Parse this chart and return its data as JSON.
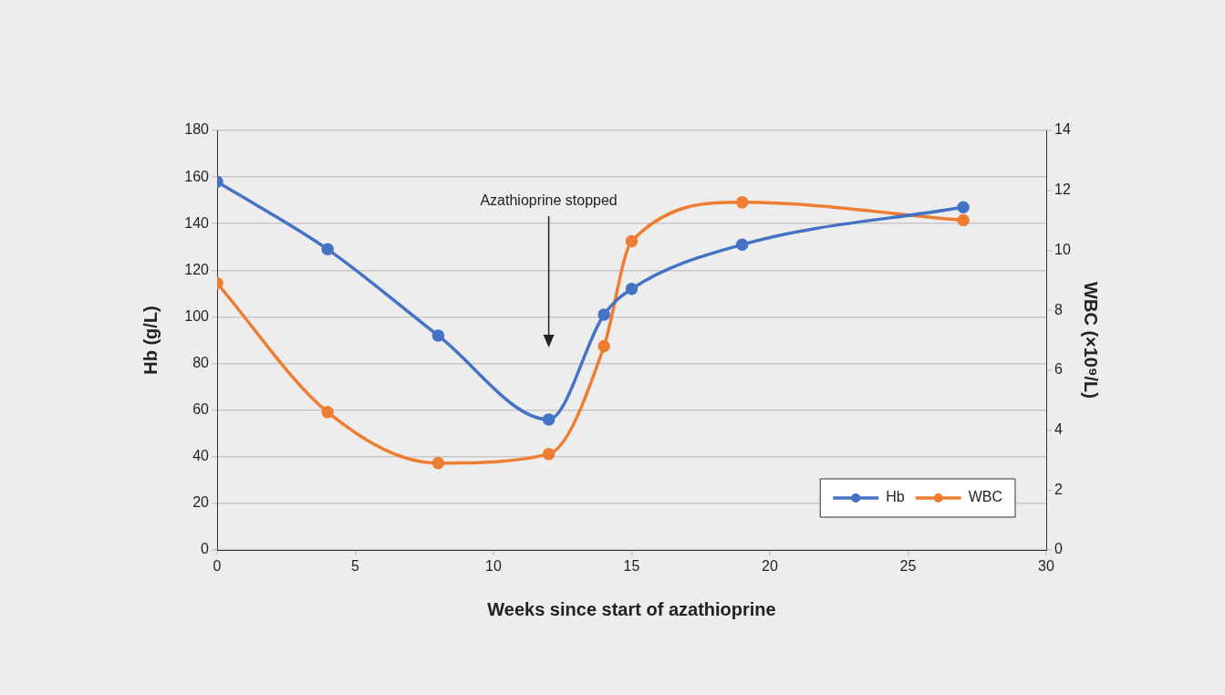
{
  "chart_data": {
    "type": "line",
    "xlabel": "Weeks since start of azathioprine",
    "ylabel": "Hb (g/L)",
    "y2label": "WBC (×10⁹/L)",
    "x": [
      0,
      4,
      8,
      12,
      14,
      15,
      19,
      27
    ],
    "series": [
      {
        "name": "Hb",
        "color": "#4472c4",
        "values": [
          158,
          129,
          92,
          56,
          101,
          112,
          131,
          147
        ]
      },
      {
        "name": "WBC",
        "color": "#ed7d31",
        "axis": "y2",
        "values": [
          8.9,
          4.6,
          2.9,
          3.2,
          6.8,
          10.3,
          11.6,
          11.0
        ]
      }
    ],
    "xlim": [
      0,
      30
    ],
    "xticks": [
      0,
      5,
      10,
      15,
      20,
      25,
      30
    ],
    "ylim": [
      0,
      180
    ],
    "yticks": [
      0,
      20,
      40,
      60,
      80,
      100,
      120,
      140,
      160,
      180
    ],
    "y2lim": [
      0,
      14
    ],
    "y2ticks": [
      0,
      2,
      4,
      6,
      8,
      10,
      12,
      14
    ],
    "annotations": [
      "Azathioprine stopped"
    ],
    "grid": "y",
    "legend": "bottom right",
    "marker": "circle",
    "line_style": "solid"
  }
}
